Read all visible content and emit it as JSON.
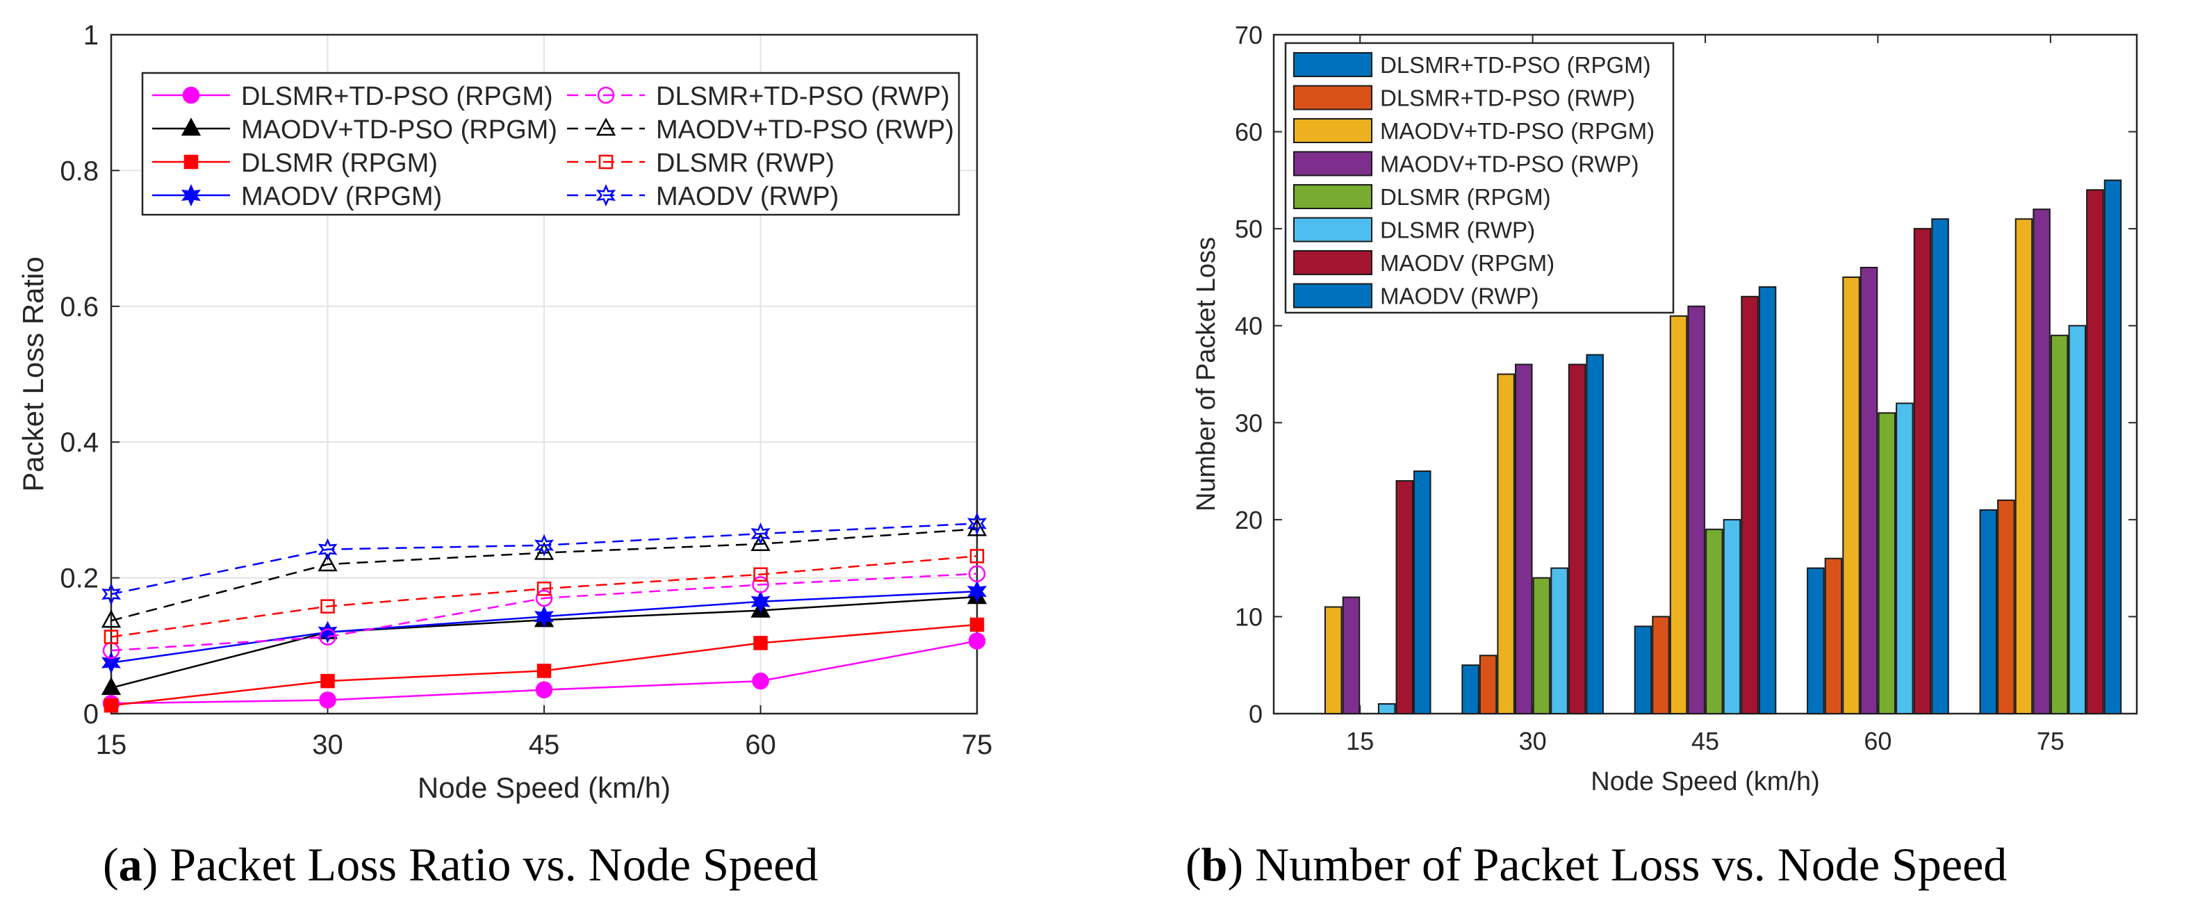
{
  "chart_data": [
    {
      "type": "line",
      "panel": "a",
      "xlabel": "Node Speed (km/h)",
      "ylabel": "Packet Loss Ratio",
      "x": [
        15,
        30,
        45,
        60,
        75
      ],
      "xticks": [
        "15",
        "30",
        "45",
        "60",
        "75"
      ],
      "yticks": [
        "0",
        "0.2",
        "0.4",
        "0.6",
        "0.8",
        "1"
      ],
      "ylim": [
        0,
        1
      ],
      "grid": true,
      "legend_position": "top-center",
      "series": [
        {
          "name": "DLSMR+TD-PSO (RPGM)",
          "color": "#ff00ff",
          "dash": "solid",
          "marker": "circle-filled",
          "values": [
            0.015,
            0.02,
            0.035,
            0.048,
            0.107
          ]
        },
        {
          "name": "MAODV+TD-PSO (RPGM)",
          "color": "#000000",
          "dash": "solid",
          "marker": "triangle-filled",
          "values": [
            0.038,
            0.12,
            0.138,
            0.152,
            0.172
          ]
        },
        {
          "name": "DLSMR (RPGM)",
          "color": "#ff0000",
          "dash": "solid",
          "marker": "square-filled",
          "values": [
            0.012,
            0.048,
            0.063,
            0.104,
            0.131
          ]
        },
        {
          "name": "MAODV (RPGM)",
          "color": "#0000ff",
          "dash": "solid",
          "marker": "star-filled",
          "values": [
            0.075,
            0.12,
            0.143,
            0.165,
            0.18
          ]
        },
        {
          "name": "DLSMR+TD-PSO (RWP)",
          "color": "#ff00ff",
          "dash": "dashed",
          "marker": "circle-open",
          "values": [
            0.093,
            0.113,
            0.17,
            0.19,
            0.206
          ]
        },
        {
          "name": "MAODV+TD-PSO (RWP)",
          "color": "#000000",
          "dash": "dashed",
          "marker": "triangle-open",
          "values": [
            0.137,
            0.22,
            0.237,
            0.25,
            0.272
          ]
        },
        {
          "name": "DLSMR (RWP)",
          "color": "#ff0000",
          "dash": "dashed",
          "marker": "square-open",
          "values": [
            0.113,
            0.158,
            0.184,
            0.205,
            0.232
          ]
        },
        {
          "name": "MAODV (RWP)",
          "color": "#0000ff",
          "dash": "dashed",
          "marker": "star-open",
          "values": [
            0.176,
            0.242,
            0.248,
            0.265,
            0.28
          ]
        }
      ],
      "caption_label": "a",
      "caption_text": ") Packet Loss Ratio vs. Node Speed",
      "caption_open": "("
    },
    {
      "type": "bar",
      "panel": "b",
      "xlabel": "Node Speed (km/h)",
      "ylabel": "Number of Packet Loss",
      "categories": [
        "15",
        "30",
        "45",
        "60",
        "75"
      ],
      "yticks": [
        "0",
        "10",
        "20",
        "30",
        "40",
        "50",
        "60",
        "70"
      ],
      "ylim": [
        0,
        70
      ],
      "grid": false,
      "legend_position": "top-left",
      "series": [
        {
          "name": "DLSMR+TD-PSO (RPGM)",
          "color": "#0072bd",
          "values": [
            0,
            5,
            9,
            15,
            21
          ]
        },
        {
          "name": "DLSMR+TD-PSO (RWP)",
          "color": "#d95319",
          "values": [
            0,
            6,
            10,
            16,
            22
          ]
        },
        {
          "name": "MAODV+TD-PSO (RPGM)",
          "color": "#edb120",
          "values": [
            11,
            35,
            41,
            45,
            51
          ]
        },
        {
          "name": "MAODV+TD-PSO (RWP)",
          "color": "#7e2f8e",
          "values": [
            12,
            36,
            42,
            46,
            52
          ]
        },
        {
          "name": "DLSMR (RPGM)",
          "color": "#77ac30",
          "values": [
            0,
            14,
            19,
            31,
            39
          ]
        },
        {
          "name": "DLSMR (RWP)",
          "color": "#4dbeee",
          "values": [
            1,
            15,
            20,
            32,
            40
          ]
        },
        {
          "name": "MAODV (RPGM)",
          "color": "#a2142f",
          "values": [
            24,
            36,
            43,
            50,
            54
          ]
        },
        {
          "name": "MAODV (RWP)",
          "color": "#0072bd",
          "values": [
            25,
            37,
            44,
            51,
            55
          ]
        }
      ],
      "caption_label": "b",
      "caption_text": ") Number of Packet Loss vs. Node Speed",
      "caption_open": "("
    }
  ]
}
